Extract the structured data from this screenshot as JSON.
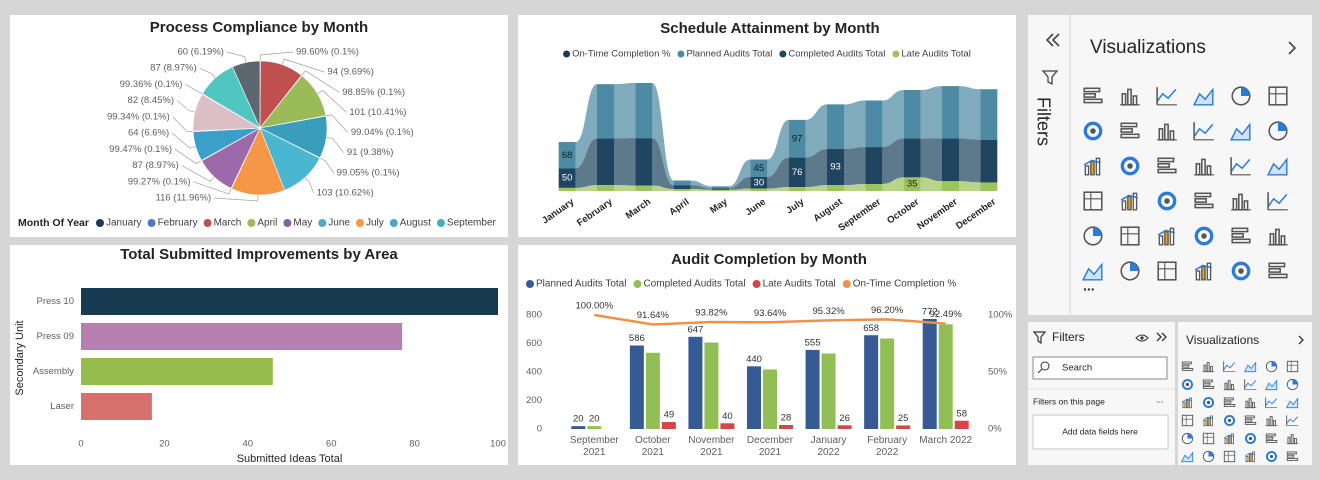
{
  "chart_data": [
    {
      "type": "pie",
      "title": "Process Compliance by Month",
      "values": [
        0.1,
        9.69,
        0.1,
        10.41,
        0.1,
        9.38,
        0.1,
        10.62,
        11.96,
        0.1,
        8.97,
        0.1,
        6.6,
        0.1,
        8.45,
        0.1,
        8.97,
        6.19
      ],
      "value_labels": [
        "99.60% (0.1%)",
        "94 (9.69%)",
        "98.85% (0.1%)",
        "101 (10.41%)",
        "99.04% (0.1%)",
        "91 (9.38%)",
        "99.05% (0.1%)",
        "103 (10.62%)",
        "116 (11.96%)",
        "99.27% (0.1%)",
        "87 (8.97%)",
        "99.47% (0.1%)",
        "64 (6.6%)",
        "99.34% (0.1%)",
        "82 (8.45%)",
        "99.36% (0.1%)",
        "87 (8.97%)",
        "60 (6.19%)"
      ],
      "colors": [
        "#1d3b57",
        "#c0504d",
        "#4e77c0",
        "#9bbb59",
        "#1d3b57",
        "#3a9dbb",
        "#4e77c0",
        "#4bb6d0",
        "#f79646",
        "#8064a2",
        "#9c6aab",
        "#3a9dbb",
        "#3a9fc9",
        "#c0504d",
        "#dcbec6",
        "#4bacc6",
        "#4fc6bf",
        "#5d6770"
      ],
      "legend": {
        "title": "Month Of Year",
        "items": [
          {
            "name": "January",
            "color": "#1b3a54"
          },
          {
            "name": "February",
            "color": "#4e77c0"
          },
          {
            "name": "March",
            "color": "#c0504d"
          },
          {
            "name": "April",
            "color": "#9bbb59"
          },
          {
            "name": "May",
            "color": "#8064a2"
          },
          {
            "name": "June",
            "color": "#4bacc6"
          },
          {
            "name": "July",
            "color": "#f79646"
          },
          {
            "name": "August",
            "color": "#4aa3d0"
          },
          {
            "name": "September",
            "color": "#3fb3b8"
          }
        ]
      }
    },
    {
      "type": "ribbon",
      "title": "Schedule Attainment by Month",
      "categories": [
        "January",
        "February",
        "March",
        "April",
        "May",
        "June",
        "July",
        "August",
        "September",
        "October",
        "November",
        "December"
      ],
      "series": [
        {
          "name": "On-Time Completion %",
          "color": "#1b3a4f",
          "values": [
            null,
            null,
            null,
            null,
            null,
            null,
            null,
            null,
            null,
            null,
            null,
            null
          ],
          "labels_at": []
        },
        {
          "name": "Planned Audits Total",
          "color": "#4d8aa3",
          "values": [
            68,
            140,
            142,
            12,
            5,
            45,
            97,
            115,
            120,
            125,
            135,
            130
          ],
          "labels_at": [
            0,
            5,
            6
          ]
        },
        {
          "name": "Completed Audits Total",
          "color": "#1f4560",
          "values": [
            50,
            120,
            122,
            10,
            4,
            30,
            76,
            93,
            95,
            100,
            110,
            110
          ],
          "labels_at": [
            0,
            5,
            6,
            7
          ]
        },
        {
          "name": "Late Audits Total",
          "color": "#9cc45c",
          "values": [
            8,
            15,
            14,
            5,
            3,
            6,
            10,
            15,
            18,
            35,
            25,
            22
          ],
          "labels_at": [
            9
          ]
        }
      ]
    },
    {
      "type": "bar",
      "orientation": "horizontal",
      "title": "Total Submitted Improvements by Area",
      "categories": [
        "Press 10",
        "Press 09",
        "Assembly",
        "Laser"
      ],
      "values": [
        100,
        77,
        46,
        17
      ],
      "colors": [
        "#163a50",
        "#b67fb0",
        "#95bd4d",
        "#d6706d"
      ],
      "xlim": [
        0,
        100
      ],
      "xticks": [
        0,
        20,
        40,
        60,
        80,
        100
      ],
      "grid": false,
      "xlabel": "Submitted Ideas Total",
      "ylabel": "Secondary Unit"
    },
    {
      "type": "combo",
      "title": "Audit Completion by Month",
      "categories": [
        "September 2021",
        "October 2021",
        "November 2021",
        "December 2021",
        "January 2022",
        "February 2022",
        "March 2022"
      ],
      "series": [
        {
          "name": "Planned Audits Total",
          "type": "bar",
          "color": "#355a94",
          "values": [
            20,
            586,
            647,
            440,
            555,
            658,
            772
          ],
          "labels_at": [
            0,
            1,
            2,
            3,
            4,
            5,
            6
          ]
        },
        {
          "name": "Completed Audits Total",
          "type": "bar",
          "color": "#92bf55",
          "values": [
            20,
            535,
            607,
            418,
            530,
            635,
            735
          ],
          "labels_at": [
            0
          ]
        },
        {
          "name": "Late Audits Total",
          "type": "bar",
          "color": "#d1474a",
          "values": [
            null,
            49,
            40,
            28,
            26,
            25,
            58
          ],
          "labels_at": [
            1,
            2,
            3,
            4,
            5,
            6
          ]
        },
        {
          "name": "On-Time Completion %",
          "type": "line",
          "axis": "y2",
          "color": "#f0914a",
          "values": [
            100,
            91.64,
            93.82,
            93.64,
            95.32,
            96.2,
            92.49
          ],
          "value_labels": [
            "100.00%",
            "91.64%",
            "93.82%",
            "93.64%",
            "95.32%",
            "96.20%",
            "92.49%"
          ]
        }
      ],
      "ylim": [
        0,
        800
      ],
      "yticks": [
        0,
        200,
        400,
        600,
        800
      ],
      "y2lim": [
        0,
        100
      ],
      "y2ticks": [
        {
          "value": 0,
          "label": "0%"
        },
        {
          "value": 50,
          "label": "50%"
        },
        {
          "value": 100,
          "label": "100%"
        }
      ],
      "grid": false
    }
  ],
  "visualizations_pane": {
    "title": "Visualizations",
    "more": "...",
    "filters_tab": "Filters"
  },
  "filters_pane": {
    "title": "Filters",
    "search_placeholder": "Search",
    "section": "Filters on this page",
    "section_menu": "...",
    "drop_hint": "Add data fields here"
  },
  "visualizations_mini": {
    "title": "Visualizations"
  }
}
